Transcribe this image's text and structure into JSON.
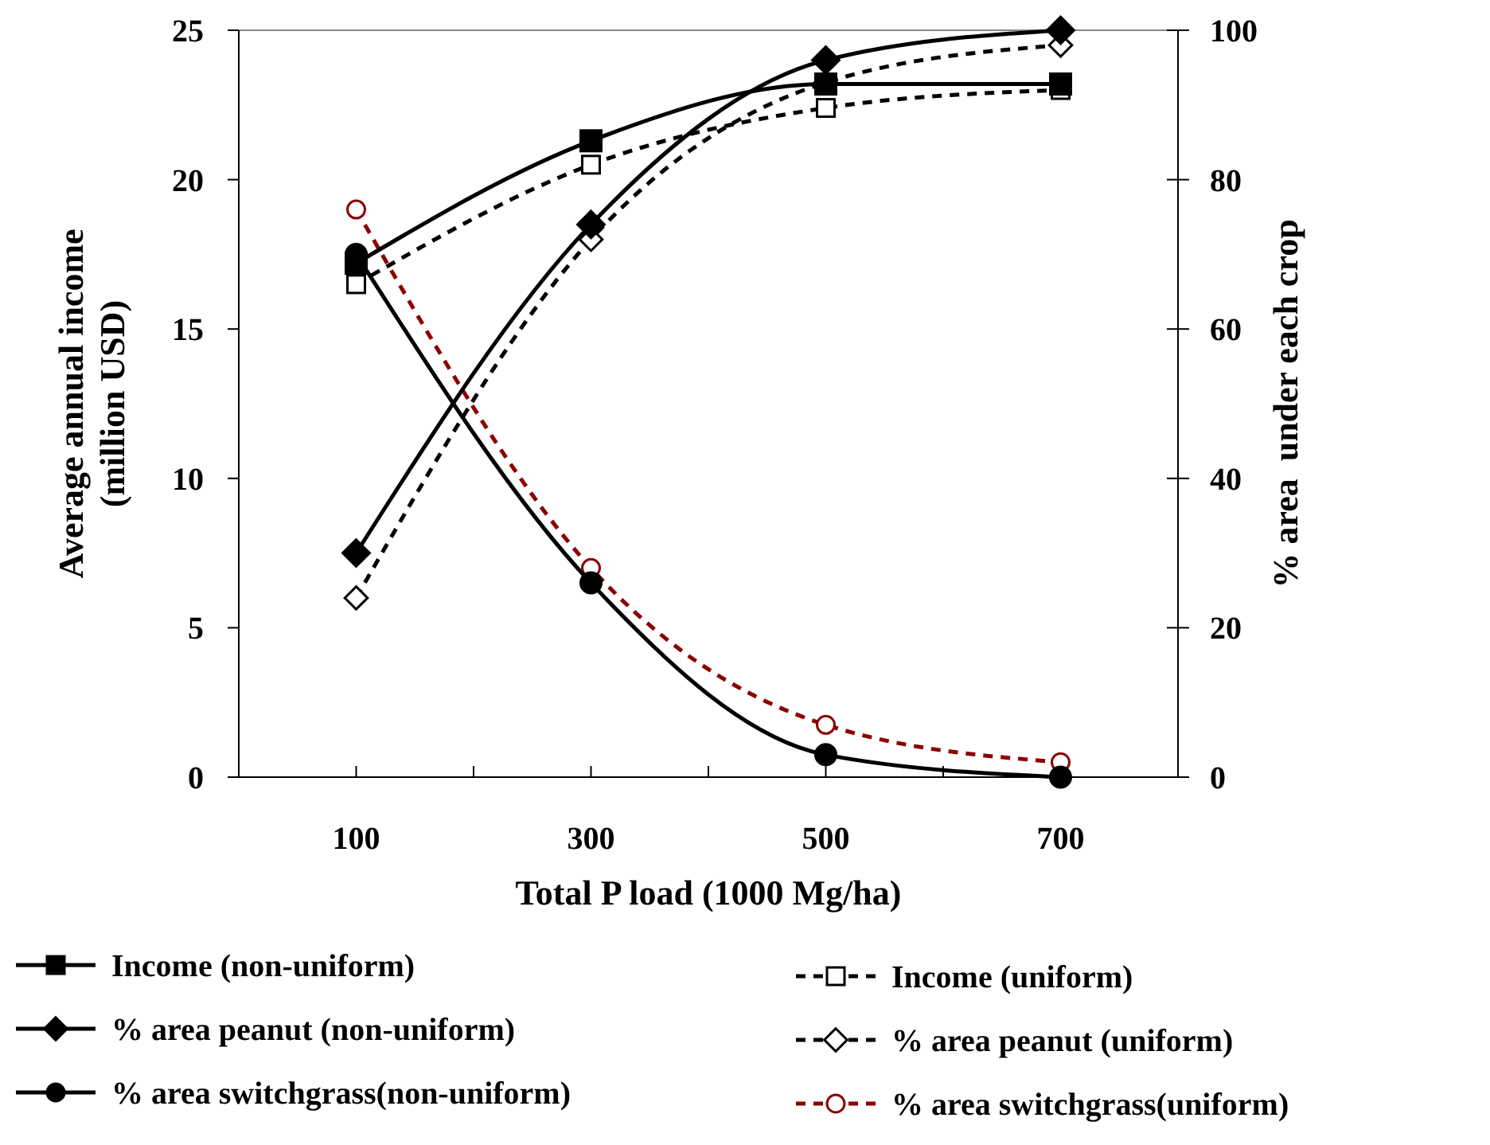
{
  "chart_data": {
    "type": "line",
    "xlabel": "Total P load (1000 Mg/ha)",
    "ylabel": "Average annual income\n(million USD)",
    "y2label": "% area  under each crop",
    "x": [
      100,
      300,
      500,
      700
    ],
    "xlim": [
      0,
      800
    ],
    "xticks": [
      100,
      {
        "value": 200,
        "label": null
      },
      300,
      {
        "value": 400,
        "label": null
      },
      500,
      {
        "value": 600,
        "label": null
      },
      700
    ],
    "ylim": [
      0,
      25
    ],
    "yticks": [
      0,
      5,
      10,
      15,
      20,
      25
    ],
    "y2lim": [
      0,
      100
    ],
    "y2ticks": [
      0,
      20,
      40,
      60,
      80,
      100
    ],
    "grid": false,
    "legend": "bottom",
    "series": [
      {
        "name": "Income (non-uniform)",
        "color": "#000000",
        "marker": "square",
        "line_style": "solid",
        "values": [
          17.2,
          21.3,
          23.2,
          23.2
        ]
      },
      {
        "name": "% area peanut (non-uniform)",
        "color": "#000000",
        "marker": "diamond",
        "line_style": "solid",
        "axis": "y2",
        "values": [
          30,
          74,
          96,
          100
        ]
      },
      {
        "name": "% area switchgrass(non-uniform)",
        "color": "#000000",
        "marker": "circle",
        "line_style": "solid",
        "axis": "y2",
        "values": [
          70,
          26,
          3,
          0
        ]
      },
      {
        "name": "Income (uniform)",
        "color": "#000000",
        "marker": "square",
        "line_style": "dashed",
        "values": [
          16.5,
          20.5,
          22.4,
          23.0
        ]
      },
      {
        "name": "% area peanut (uniform)",
        "color": "#000000",
        "marker": "diamond",
        "line_style": "dashed",
        "axis": "y2",
        "values": [
          24,
          72,
          93,
          98
        ]
      },
      {
        "name": "% area switchgrass(uniform)",
        "color": "#8b0000",
        "marker": "circle",
        "line_style": "dashed",
        "axis": "y2",
        "values": [
          76,
          28,
          7,
          2
        ]
      }
    ]
  }
}
